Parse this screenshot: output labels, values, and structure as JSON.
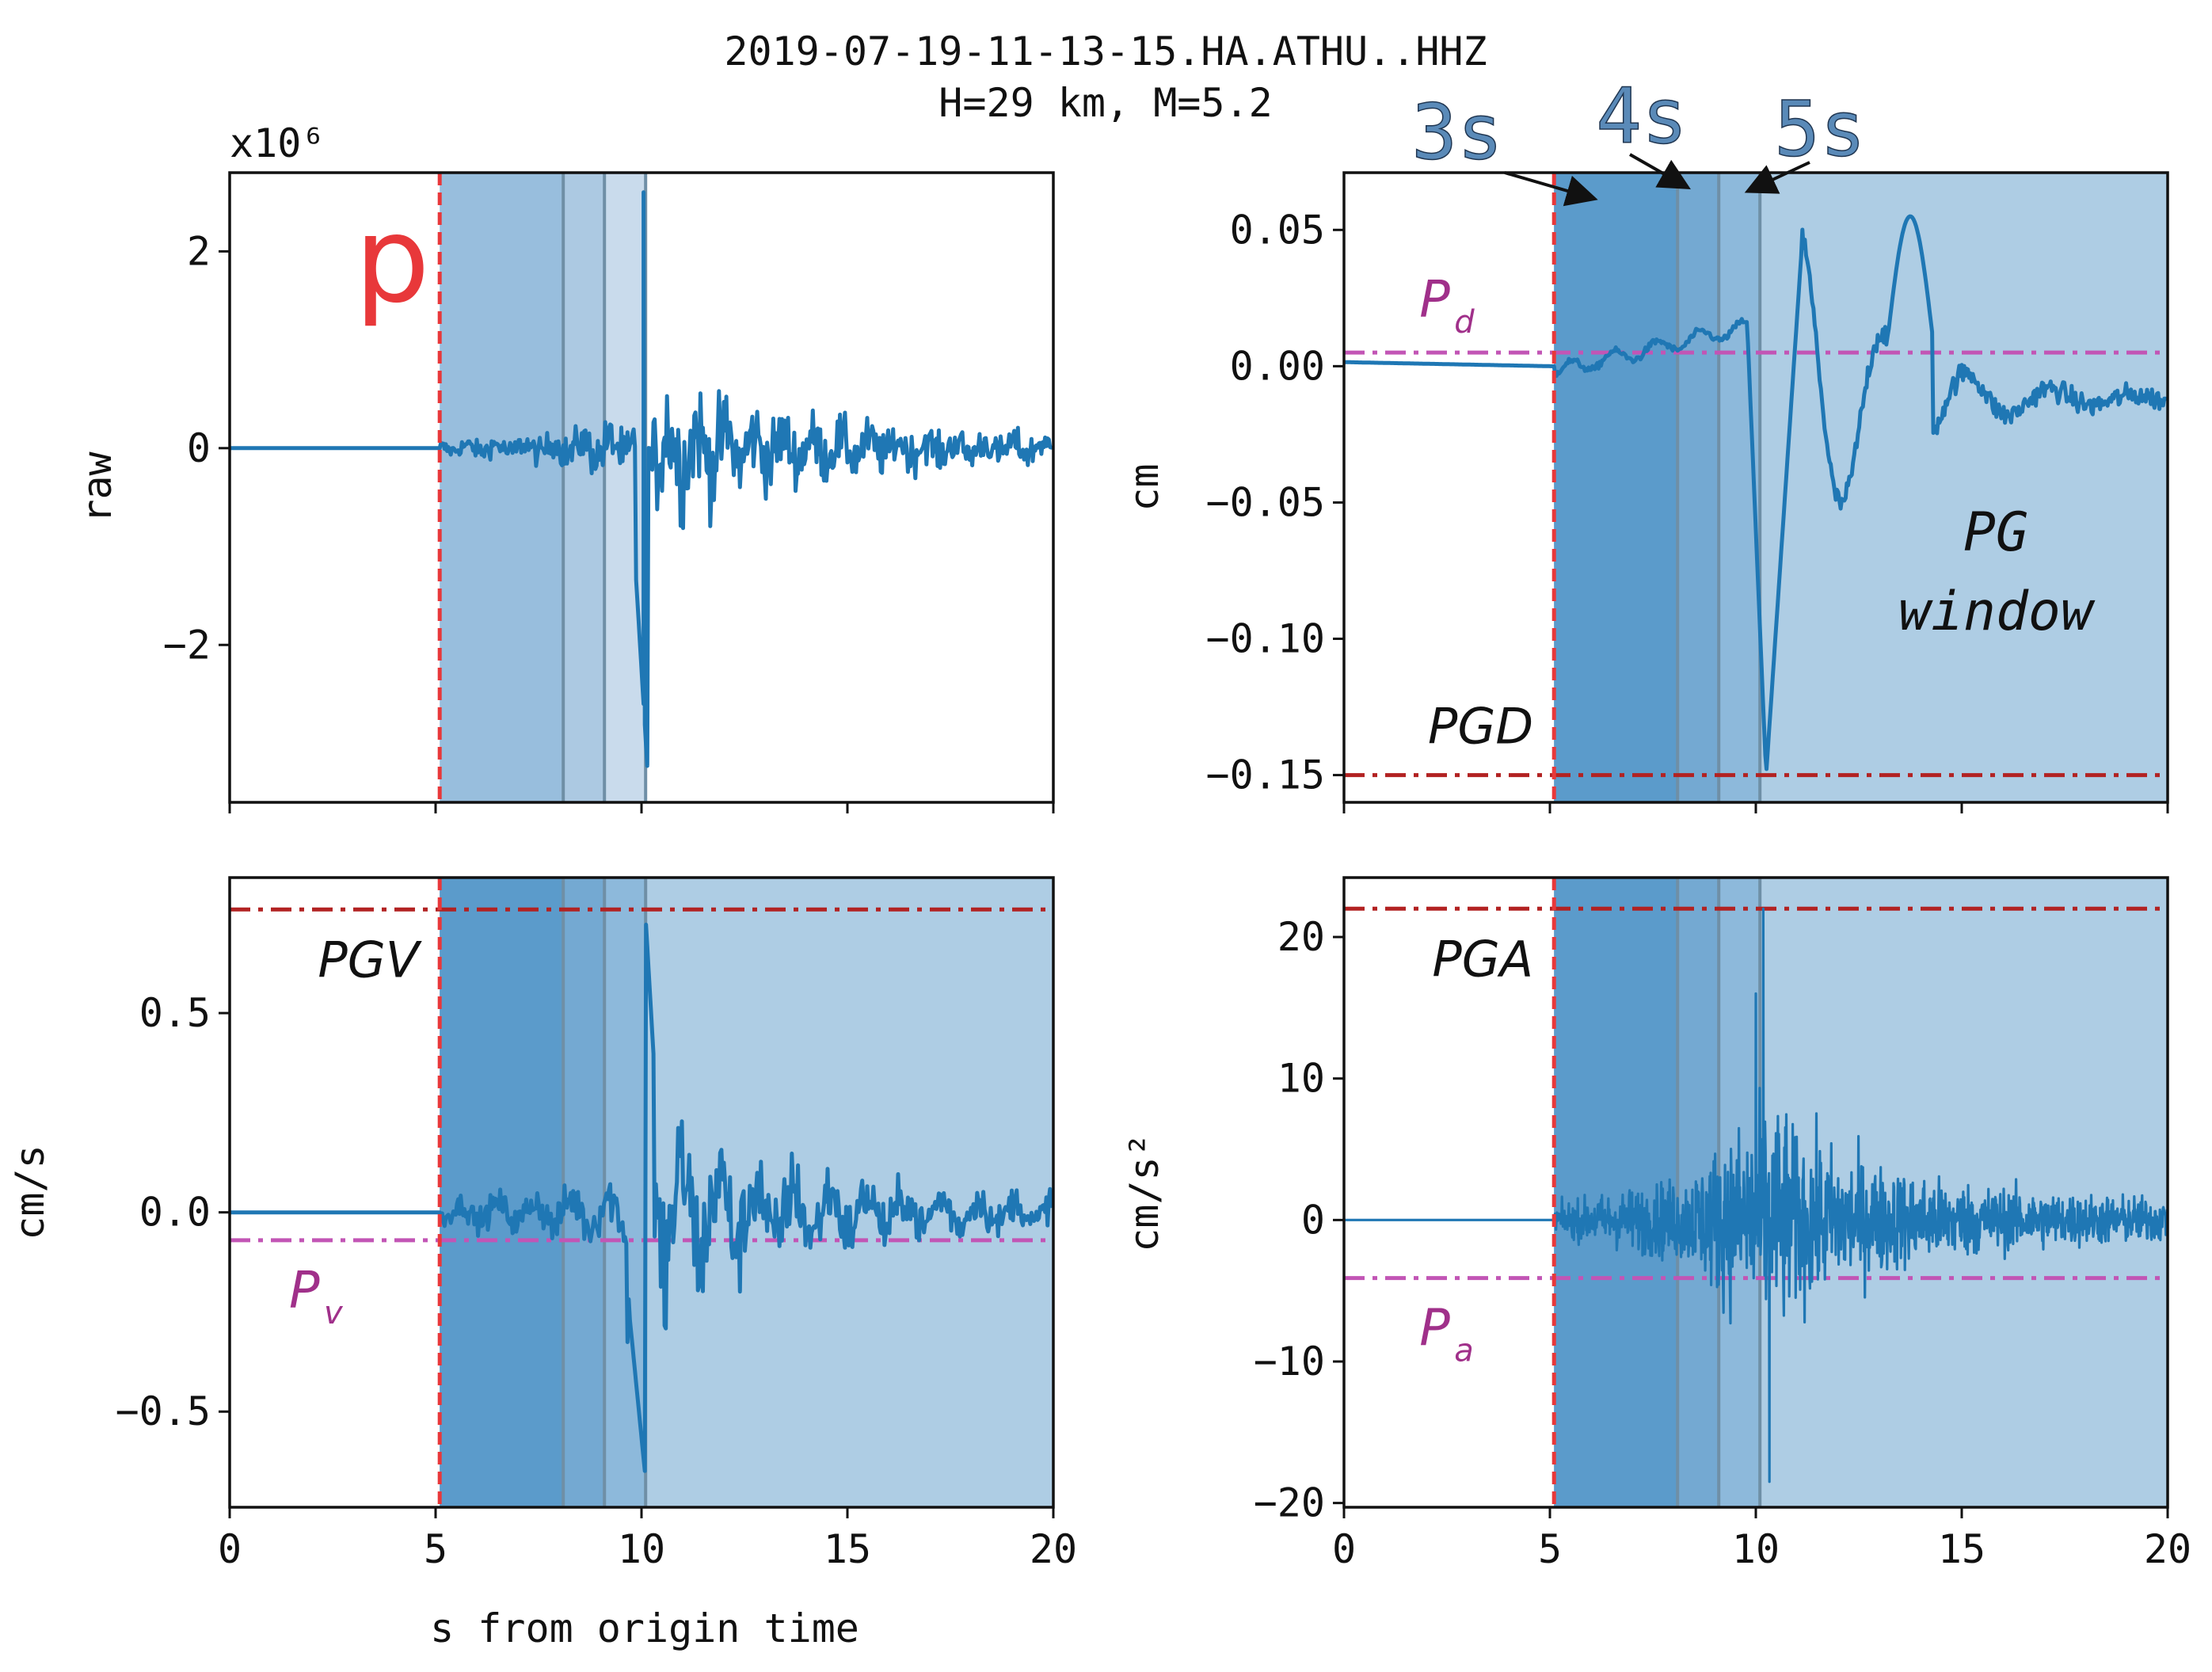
{
  "chart_data": {
    "figure_title": [
      "2019-07-19-11-13-15.HA.ATHU..HHZ",
      "H=29 km, M=5.2"
    ],
    "xlabel": "s from origin time",
    "xlim": [
      0,
      20
    ],
    "x_ticks": [
      0,
      5,
      10,
      15,
      20
    ],
    "x_tick_labels": [
      "0",
      "5",
      "10",
      "15",
      "20"
    ],
    "p_arrival": 5.1,
    "window_boundaries": [
      8.1,
      9.1,
      10.1
    ],
    "window_labels": [
      "3s",
      "4s",
      "5s"
    ],
    "p_label": "p",
    "colors": {
      "trace": "#1f77b4",
      "p_line": "#e8383a",
      "peak_line": "#b22222",
      "p_param_line": "#c255b5",
      "shade_main": "#5b9bcb",
      "shade_light": "#aecde4"
    },
    "panels": [
      {
        "id": "raw",
        "type": "line",
        "ylabel": "raw",
        "scale_label": "x10⁶",
        "ylim": [
          -3.6,
          2.8
        ],
        "y_ticks": [
          2,
          0,
          -2
        ],
        "y_tick_labels": [
          "2",
          "0",
          "−2"
        ],
        "series": [
          {
            "name": "raw trace (x10^6)",
            "type": "waveform",
            "onset": 5.1,
            "end": 20,
            "peak_time": 10.1,
            "max": 2.6,
            "min": -3.3
          }
        ]
      },
      {
        "id": "displacement",
        "type": "line",
        "ylabel": "cm",
        "ylim": [
          -0.16,
          0.071
        ],
        "y_ticks": [
          0.05,
          0.0,
          -0.05,
          -0.1,
          -0.15
        ],
        "y_tick_labels": [
          "0.05",
          "0.00",
          "−0.05",
          "−0.10",
          "−0.15"
        ],
        "peak_label": "PGD",
        "peak_value": -0.15,
        "p_param_label": "P",
        "p_param_sub": "d",
        "p_param_value": 0.005,
        "window_text": [
          "PG",
          "window"
        ],
        "series": [
          {
            "name": "displacement",
            "type": "waveform",
            "onset": 5.1,
            "end": 20,
            "peak_time": 10.2,
            "max": 0.06,
            "min": -0.15
          }
        ]
      },
      {
        "id": "velocity",
        "type": "line",
        "ylabel": "cm/s",
        "ylim": [
          -0.74,
          0.84
        ],
        "y_ticks": [
          0.5,
          0.0,
          -0.5
        ],
        "y_tick_labels": [
          "0.5",
          "0.0",
          "−0.5"
        ],
        "peak_label": "PGV",
        "peak_value": 0.76,
        "p_param_label": "P",
        "p_param_sub": "v",
        "p_param_value": -0.07,
        "series": [
          {
            "name": "velocity",
            "type": "waveform",
            "onset": 5.1,
            "end": 20,
            "peak_time": 10.2,
            "max": 0.75,
            "min": -0.68
          }
        ]
      },
      {
        "id": "acceleration",
        "type": "line",
        "ylabel": "cm/s²",
        "ylim": [
          -20.3,
          24.2
        ],
        "y_ticks": [
          20,
          10,
          0,
          -10,
          -20
        ],
        "y_tick_labels": [
          "20",
          "10",
          "0",
          "−10",
          "−20"
        ],
        "peak_label": "PGA",
        "peak_value": 22.0,
        "p_param_label": "P",
        "p_param_sub": "a",
        "p_param_value": -4.1,
        "series": [
          {
            "name": "acceleration",
            "type": "waveform",
            "onset": 5.1,
            "end": 20,
            "peak_time": 10.2,
            "max": 22.0,
            "min": -18.5
          }
        ]
      }
    ]
  }
}
